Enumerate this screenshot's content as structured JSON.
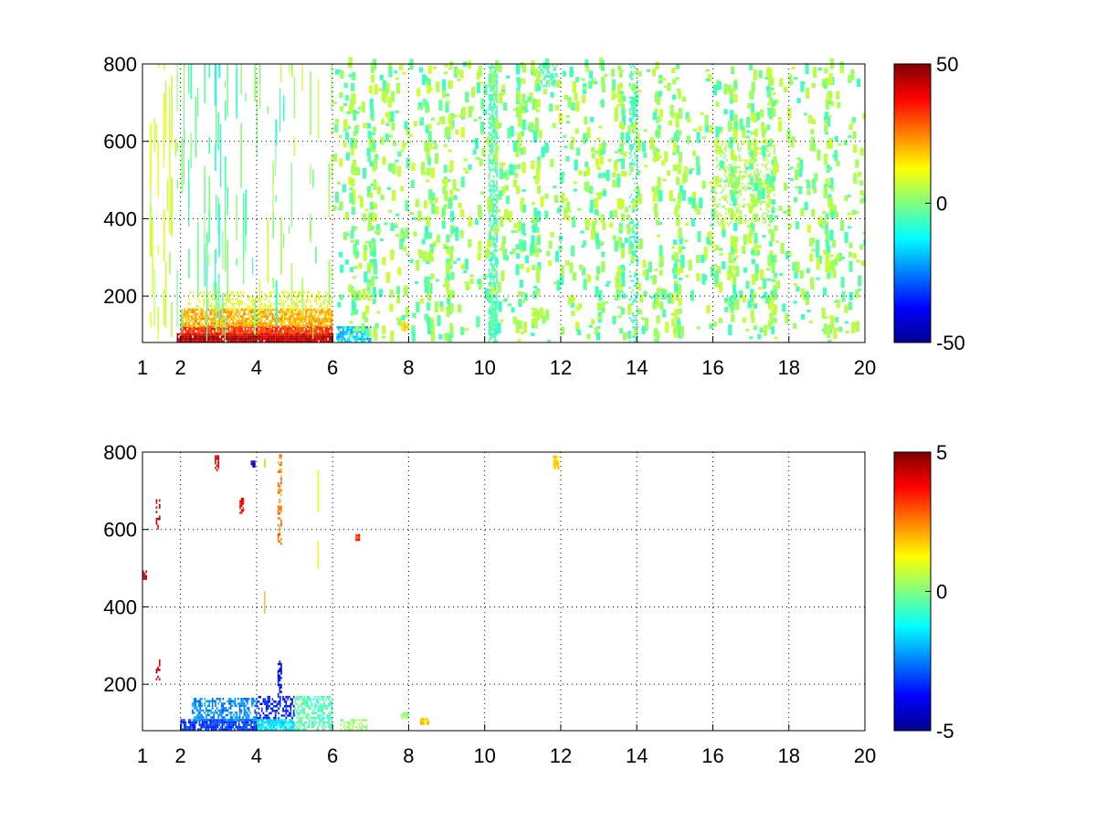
{
  "figure": {
    "background": "#ffffff"
  },
  "chart_data": [
    {
      "type": "heatmap",
      "title": "",
      "xlabel": "",
      "ylabel": "",
      "xlim": [
        1,
        20
      ],
      "ylim": [
        80,
        800
      ],
      "x_ticks": [
        1,
        2,
        4,
        6,
        8,
        10,
        12,
        14,
        16,
        18,
        20
      ],
      "y_ticks": [
        200,
        400,
        600,
        800
      ],
      "grid": true,
      "colormap": "jet",
      "colorbar": {
        "min": -50,
        "max": 50,
        "ticks": [
          50,
          0,
          -50
        ]
      },
      "blobs": [
        {
          "x0": 1.9,
          "x1": 6.0,
          "y0": 80,
          "y1": 100,
          "value": 45,
          "density": 0.97
        },
        {
          "x0": 2.0,
          "x1": 6.0,
          "y0": 100,
          "y1": 120,
          "value": 32,
          "density": 0.92
        },
        {
          "x0": 2.0,
          "x1": 6.0,
          "y0": 120,
          "y1": 165,
          "value": 20,
          "density": 0.78
        },
        {
          "x0": 2.2,
          "x1": 6.0,
          "y0": 165,
          "y1": 210,
          "value": 10,
          "density": 0.35
        },
        {
          "x0": 6.1,
          "x1": 7.0,
          "y0": 80,
          "y1": 120,
          "value": -18,
          "density": 0.7
        },
        {
          "x0": 7.8,
          "x1": 8.0,
          "y0": 110,
          "y1": 130,
          "value": 16,
          "density": 0.9
        },
        {
          "x0": 10.1,
          "x1": 10.3,
          "y0": 80,
          "y1": 800,
          "value": -5,
          "density": 0.7
        },
        {
          "x0": 11.4,
          "x1": 11.9,
          "y0": 740,
          "y1": 800,
          "value": -4,
          "density": 0.5
        },
        {
          "x0": 13.8,
          "x1": 14.0,
          "y0": 80,
          "y1": 800,
          "value": -6,
          "density": 0.35
        },
        {
          "x0": 16.0,
          "x1": 17.6,
          "y0": 380,
          "y1": 600,
          "value": 5,
          "density": 0.3
        }
      ],
      "streaks": [
        {
          "x0": 1.0,
          "x1": 1.9,
          "step": 0.05,
          "y0": 80,
          "y1": 800,
          "value": 8,
          "density": 0.32,
          "segments": 7
        },
        {
          "x0": 1.9,
          "x1": 4.0,
          "step": 0.06,
          "y0": 80,
          "y1": 800,
          "value": -2,
          "density": 0.3,
          "segments": 6
        },
        {
          "x0": 4.0,
          "x1": 6.0,
          "step": 0.07,
          "y0": 80,
          "y1": 800,
          "value": 3,
          "density": 0.28,
          "segments": 5
        },
        {
          "x0": 2.9,
          "x1": 3.1,
          "step": 0.1,
          "y0": 80,
          "y1": 800,
          "value": -8,
          "density": 0.6,
          "segments": 4
        },
        {
          "x0": 4.5,
          "x1": 4.7,
          "step": 0.1,
          "y0": 80,
          "y1": 800,
          "value": -6,
          "density": 0.6,
          "segments": 4
        }
      ],
      "scatter": [
        {
          "x0": 6.0,
          "x1": 20.0,
          "y0": 80,
          "y1": 800,
          "cell_x": 0.1,
          "cell_y": 7,
          "count": 1900,
          "values": [
            -6,
            -3,
            3,
            5,
            7
          ]
        }
      ]
    },
    {
      "type": "heatmap",
      "title": "",
      "xlabel": "",
      "ylabel": "",
      "xlim": [
        1,
        20
      ],
      "ylim": [
        80,
        800
      ],
      "x_ticks": [
        1,
        2,
        4,
        6,
        8,
        10,
        12,
        14,
        16,
        18,
        20
      ],
      "y_ticks": [
        200,
        400,
        600,
        800
      ],
      "grid": true,
      "colormap": "jet",
      "colorbar": {
        "min": -5,
        "max": 5,
        "ticks": [
          5,
          0,
          -5
        ]
      },
      "blobs": [
        {
          "x0": 2.0,
          "x1": 4.0,
          "y0": 80,
          "y1": 105,
          "value": -3.2,
          "density": 0.85
        },
        {
          "x0": 2.3,
          "x1": 4.0,
          "y0": 105,
          "y1": 165,
          "value": -2.4,
          "density": 0.55
        },
        {
          "x0": 4.0,
          "x1": 5.0,
          "y0": 80,
          "y1": 110,
          "value": -1.5,
          "density": 0.85
        },
        {
          "x0": 4.0,
          "x1": 5.0,
          "y0": 110,
          "y1": 165,
          "value": -3.5,
          "density": 0.45
        },
        {
          "x0": 5.0,
          "x1": 6.0,
          "y0": 80,
          "y1": 165,
          "value": -0.5,
          "density": 0.55
        },
        {
          "x0": 6.2,
          "x1": 6.9,
          "y0": 80,
          "y1": 110,
          "value": 0.3,
          "density": 0.5
        },
        {
          "x0": 7.8,
          "x1": 8.0,
          "y0": 110,
          "y1": 125,
          "value": 0.2,
          "density": 0.9
        },
        {
          "x0": 8.3,
          "x1": 8.5,
          "y0": 95,
          "y1": 110,
          "value": 1.6,
          "density": 0.9
        },
        {
          "x0": 11.8,
          "x1": 11.95,
          "y0": 755,
          "y1": 790,
          "value": 1.6,
          "density": 0.9
        },
        {
          "x0": 4.55,
          "x1": 4.65,
          "y0": 560,
          "y1": 790,
          "value": 2.5,
          "density": 0.5
        },
        {
          "x0": 3.55,
          "x1": 3.65,
          "y0": 640,
          "y1": 680,
          "value": 3.8,
          "density": 0.8
        },
        {
          "x0": 6.6,
          "x1": 6.7,
          "y0": 570,
          "y1": 585,
          "value": 3.5,
          "density": 0.9
        },
        {
          "x0": 2.9,
          "x1": 3.0,
          "y0": 750,
          "y1": 790,
          "value": 4.0,
          "density": 0.6
        },
        {
          "x0": 3.85,
          "x1": 3.95,
          "y0": 760,
          "y1": 775,
          "value": -4.5,
          "density": 0.9
        },
        {
          "x0": 1.35,
          "x1": 1.45,
          "y0": 210,
          "y1": 260,
          "value": 4.2,
          "density": 0.6
        },
        {
          "x0": 1.35,
          "x1": 1.45,
          "y0": 600,
          "y1": 680,
          "value": 4.3,
          "density": 0.4
        },
        {
          "x0": 1.0,
          "x1": 1.1,
          "y0": 470,
          "y1": 490,
          "value": 4.5,
          "density": 0.9
        },
        {
          "x0": 4.55,
          "x1": 4.65,
          "y0": 165,
          "y1": 260,
          "value": -3.8,
          "density": 0.5
        }
      ],
      "streaks": [
        {
          "x0": 1.0,
          "x1": 6.0,
          "step": 0.2,
          "y0": 180,
          "y1": 800,
          "value": 1.5,
          "density": 0.06,
          "segments": 3
        }
      ],
      "scatter": []
    }
  ]
}
